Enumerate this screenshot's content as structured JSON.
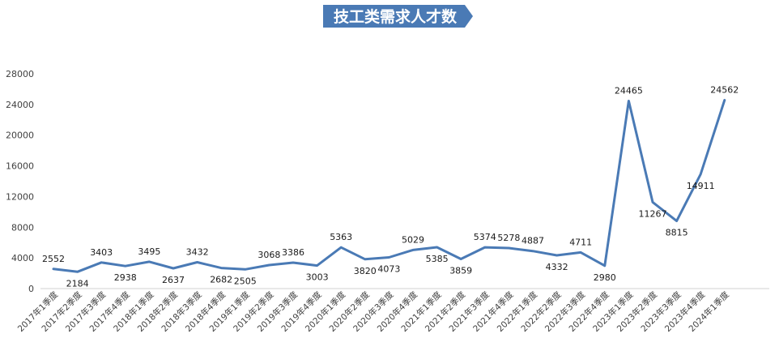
{
  "chart_data": {
    "type": "line",
    "title": "技工类需求人才数",
    "xlabel": "",
    "ylabel": "",
    "ylim": [
      0,
      28000
    ],
    "yticks": [
      0,
      4000,
      8000,
      12000,
      16000,
      20000,
      24000,
      28000
    ],
    "grid": false,
    "legend": "none",
    "line_color": "#4a7ab5",
    "title_bg_color": "#4a7ab5",
    "categories": [
      "2017年1季度",
      "2017年2季度",
      "2017年3季度",
      "2017年4季度",
      "2018年1季度",
      "2018年2季度",
      "2018年3季度",
      "2018年4季度",
      "2019年1季度",
      "2019年2季度",
      "2019年3季度",
      "2019年4季度",
      "2020年1季度",
      "2020年2季度",
      "2020年3季度",
      "2020年4季度",
      "2021年1季度",
      "2021年2季度",
      "2021年3季度",
      "2021年4季度",
      "2022年1季度",
      "2022年2季度",
      "2022年3季度",
      "2022年4季度",
      "2023年1季度",
      "2023年2季度",
      "2023年3季度",
      "2023年4季度",
      "2024年1季度"
    ],
    "values": [
      2552,
      2184,
      3403,
      2938,
      3495,
      2637,
      3432,
      2682,
      2505,
      3068,
      3386,
      3003,
      5363,
      3820,
      4073,
      5029,
      5385,
      3859,
      5374,
      5278,
      4887,
      4332,
      4711,
      2980,
      24465,
      11267,
      8815,
      14911,
      24562
    ]
  }
}
